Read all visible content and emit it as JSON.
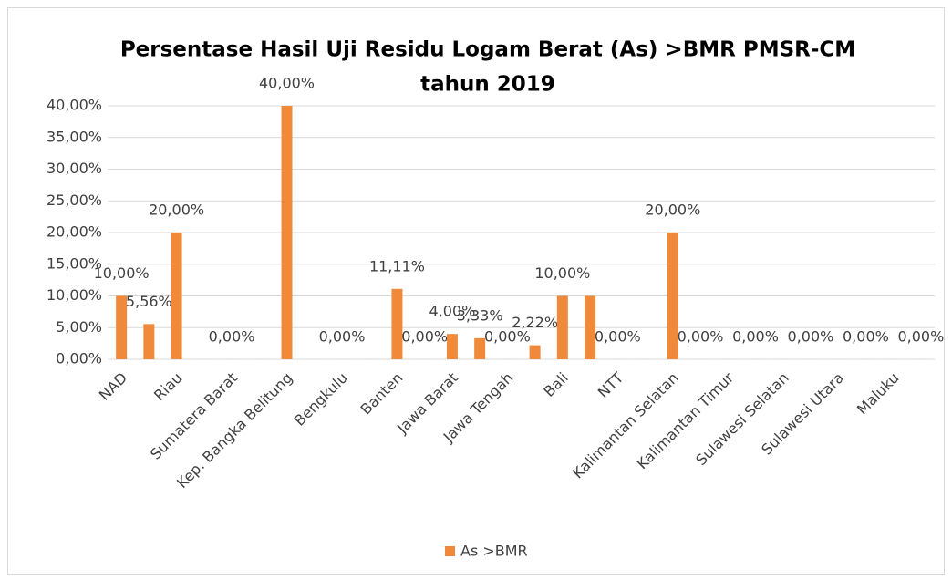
{
  "chart_data": {
    "type": "bar",
    "title": [
      "Persentase Hasil Uji Residu Logam Berat (As) >BMR PMSR-CM",
      "tahun 2019"
    ],
    "categories": [
      "NAD",
      null,
      "Riau",
      null,
      "Sumatera Barat",
      null,
      "Kep. Bangka Belitung",
      null,
      "Bengkulu",
      null,
      "Banten",
      null,
      "Jawa Barat",
      null,
      "Jawa Tengah",
      null,
      "Bali",
      null,
      "NTT",
      null,
      "Kalimantan Selatan",
      null,
      "Kalimantan Timur",
      null,
      "Sulawesi Selatan",
      null,
      "Sulawesi Utara",
      null,
      "Maluku",
      null
    ],
    "series": [
      {
        "name": "As >BMR",
        "color": "#f08a3a",
        "values": [
          10,
          5.56,
          20,
          0,
          0,
          0,
          40,
          0,
          0,
          0,
          11.11,
          0,
          4,
          3.33,
          0,
          2.22,
          10,
          10,
          0,
          0,
          20,
          0,
          0,
          0,
          0,
          0,
          0,
          0,
          0,
          0
        ],
        "value_labels": [
          "10,00%",
          "5,56%",
          "20,00%",
          null,
          "0,00%",
          null,
          "40,00%",
          null,
          "0,00%",
          null,
          "11,11%",
          "0,00%",
          "4,00%",
          "3,33%",
          "0,00%",
          "2,22%",
          "10,00%",
          null,
          "0,00%",
          null,
          "20,00%",
          "0,00%",
          null,
          "0,00%",
          null,
          "0,00%",
          null,
          "0,00%",
          null,
          "0,00%"
        ]
      }
    ],
    "ylim": [
      0,
      40
    ],
    "yticks": [
      {
        "value": 0,
        "label": "0,00%"
      },
      {
        "value": 5,
        "label": "5,00%"
      },
      {
        "value": 10,
        "label": "10,00%"
      },
      {
        "value": 15,
        "label": "15,00%"
      },
      {
        "value": 20,
        "label": "20,00%"
      },
      {
        "value": 25,
        "label": "25,00%"
      },
      {
        "value": 30,
        "label": "30,00%"
      },
      {
        "value": 35,
        "label": "35,00%"
      },
      {
        "value": 40,
        "label": "40,00%"
      }
    ],
    "grid": true,
    "legend": "bottom"
  }
}
